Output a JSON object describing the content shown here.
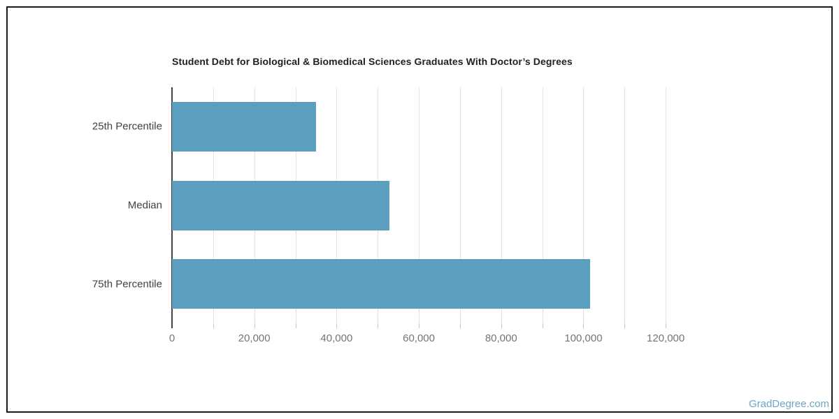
{
  "chart_data": {
    "type": "bar",
    "orientation": "horizontal",
    "title": "Student Debt for Biological & Biomedical Sciences Graduates With Doctor’s Degrees",
    "categories": [
      "25th Percentile",
      "Median",
      "75th Percentile"
    ],
    "values": [
      35000,
      52900,
      101600
    ],
    "xlabel": "",
    "ylabel": "",
    "xlim": [
      0,
      130000
    ],
    "x_major_ticks": [
      0,
      20000,
      40000,
      60000,
      80000,
      100000,
      120000
    ],
    "x_major_tick_labels": [
      "0",
      "20,000",
      "40,000",
      "60,000",
      "80,000",
      "100,000",
      "120,000"
    ],
    "gridline_interval": 10000,
    "gridline_max": 120000,
    "grid": true,
    "legend": "none",
    "bar_color": "#5A9FBE",
    "gridline_color": "#e2e2e2",
    "axis_color": "#424242"
  },
  "watermark": {
    "label": "GradDegree.com",
    "color": "#6CA6C6"
  }
}
